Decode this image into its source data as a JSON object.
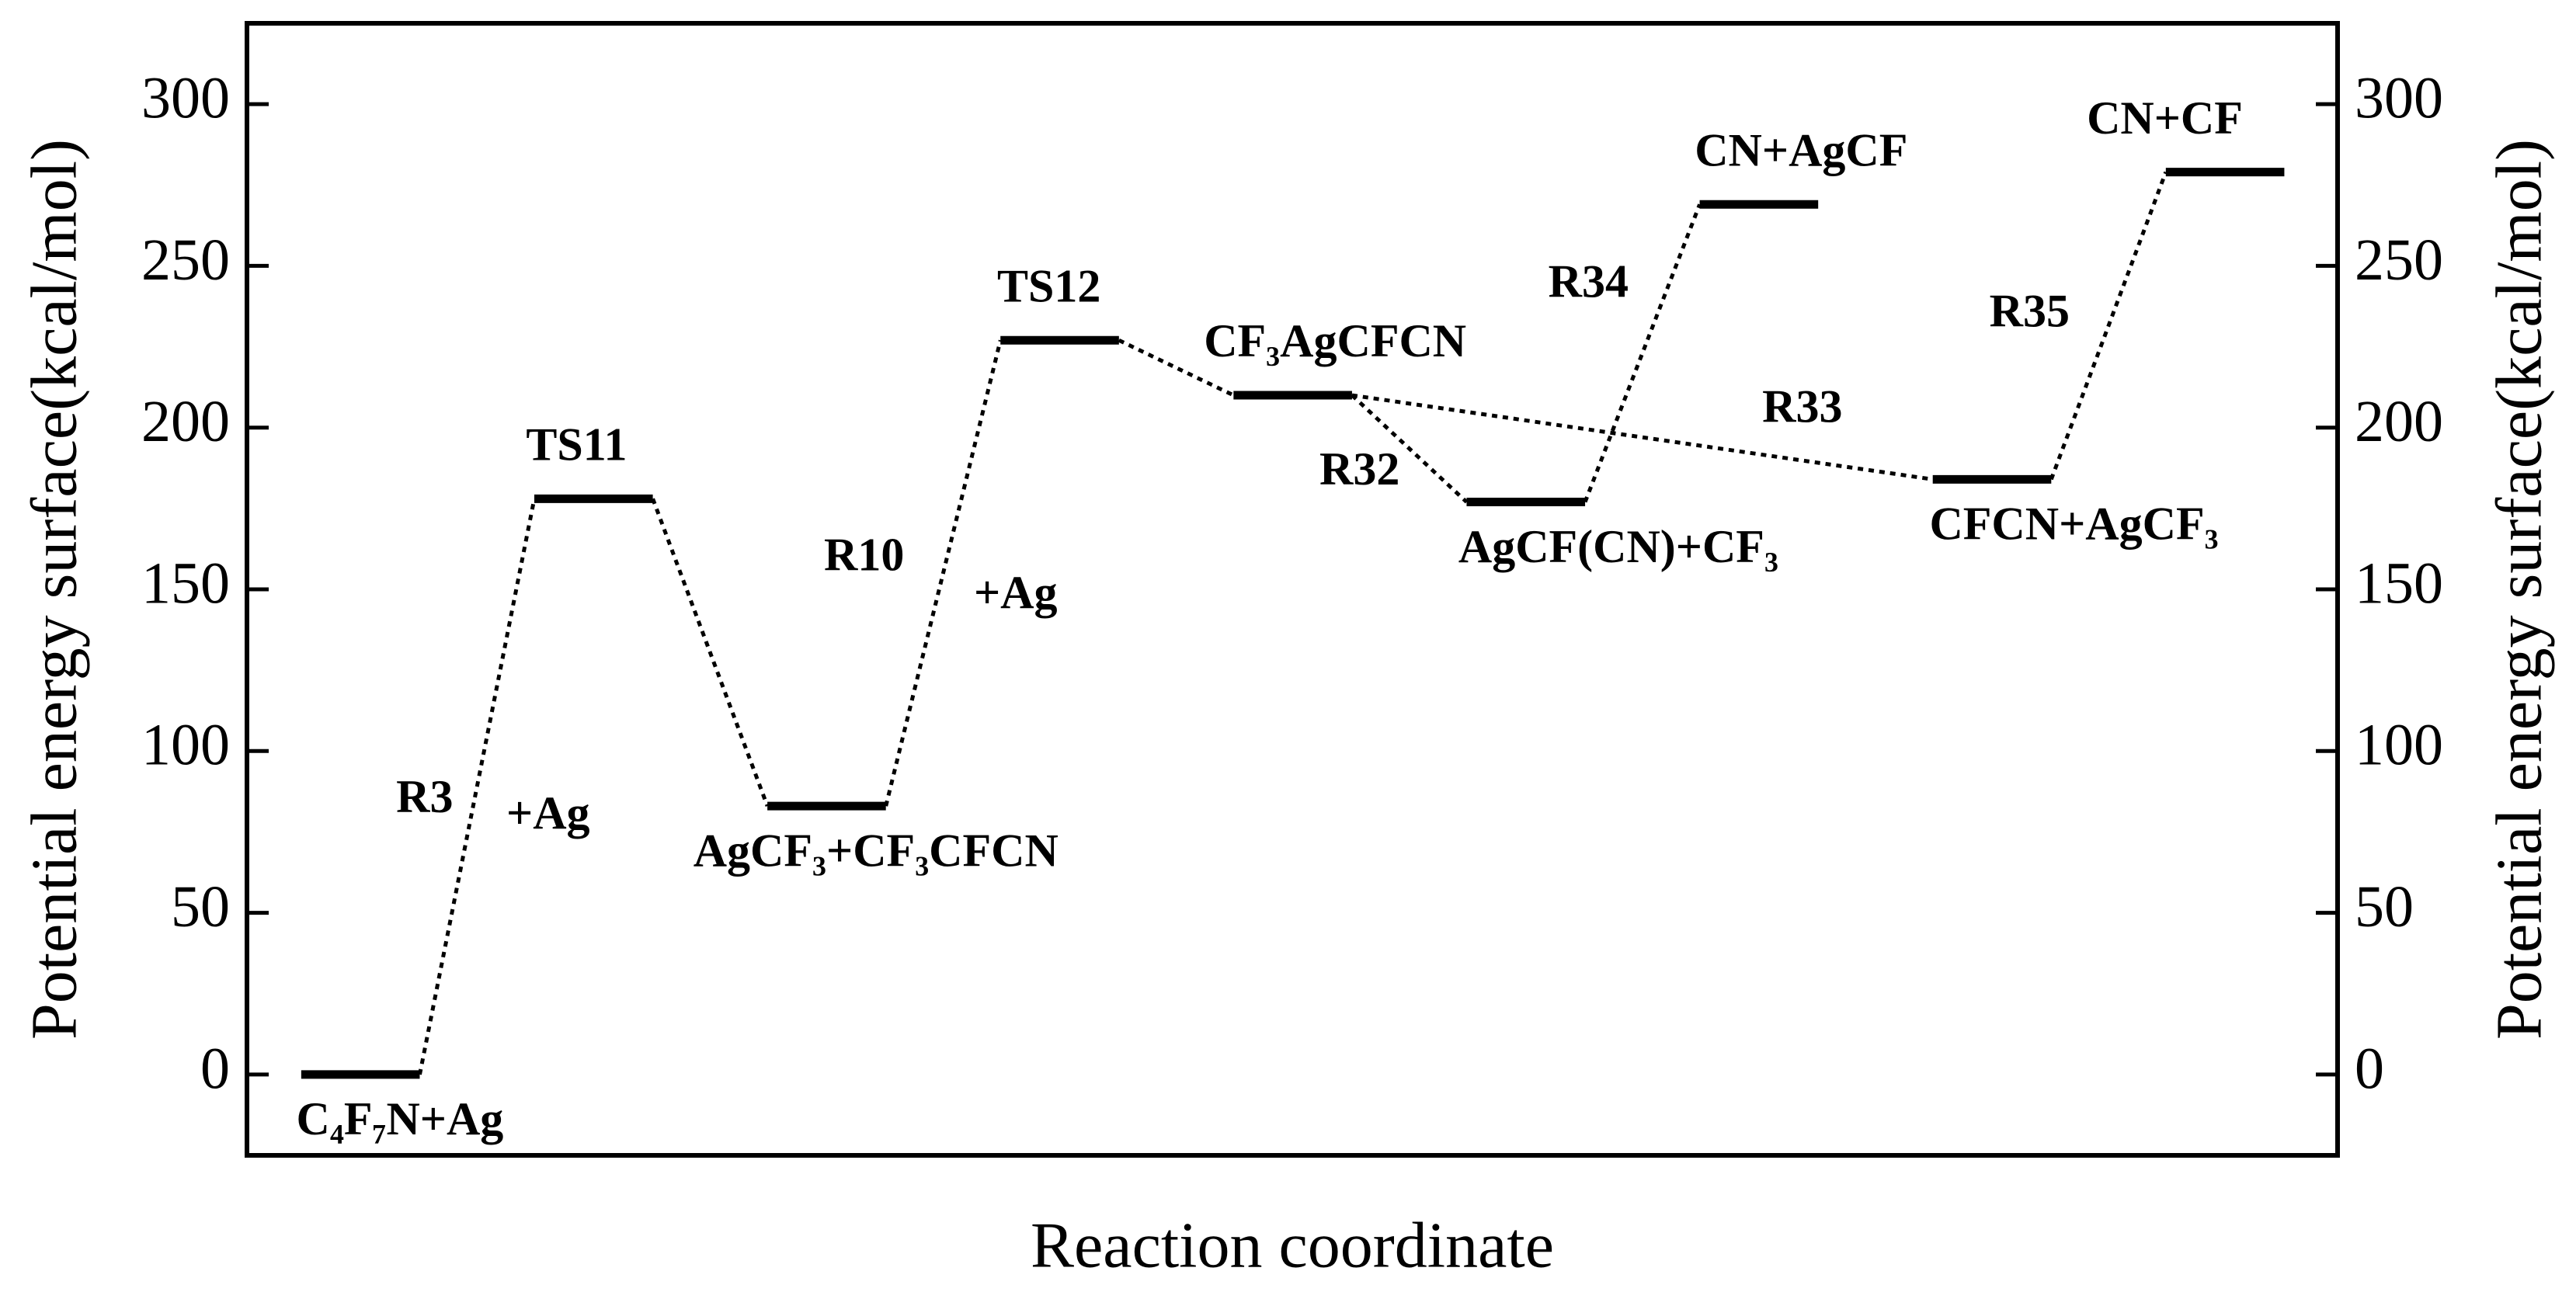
{
  "chart_data": {
    "type": "energy_profile",
    "x_label": "Reaction coordinate",
    "y_label": "Potential energy surface(kcal/mol)",
    "y2_label": "Potential energy surface(kcal/mol)",
    "ylim": [
      -25,
      325
    ],
    "yticks": [
      0,
      50,
      100,
      150,
      200,
      250,
      300
    ],
    "y2lim": [
      -25,
      325
    ],
    "y2ticks": [
      0,
      50,
      100,
      150,
      200,
      250,
      300
    ],
    "color": "#000000",
    "levels": [
      {
        "label": "C₄F₇N+Ag",
        "energy": 0,
        "label_position": "below"
      },
      {
        "label": "TS11",
        "energy": 178,
        "label_position": "above"
      },
      {
        "label": "AgCF₃+CF₃CFCN",
        "energy": 83,
        "label_position": "below"
      },
      {
        "label": "TS12",
        "energy": 227,
        "label_position": "above"
      },
      {
        "label": "CF₃AgCFCN",
        "energy": 210,
        "label_position": "above"
      },
      {
        "label": "AgCF(CN)+CF₃",
        "energy": 177,
        "label_position": "below"
      },
      {
        "label": "CN+AgCF",
        "energy": 269,
        "label_position": "above"
      },
      {
        "label": "CFCN+AgCF₃",
        "energy": 184,
        "label_position": "below"
      },
      {
        "label": "CN+CF",
        "energy": 279,
        "label_position": "above"
      }
    ],
    "connections": [
      {
        "from": 0,
        "to": 1,
        "labels": [
          "R3",
          "+Ag"
        ]
      },
      {
        "from": 1,
        "to": 2
      },
      {
        "from": 2,
        "to": 3,
        "labels": [
          "R10",
          "+Ag"
        ]
      },
      {
        "from": 3,
        "to": 4
      },
      {
        "from": 4,
        "to": 5,
        "labels": [
          "R32"
        ]
      },
      {
        "from": 4,
        "to": 7,
        "labels": [
          "R33"
        ]
      },
      {
        "from": 5,
        "to": 6,
        "labels": [
          "R34"
        ]
      },
      {
        "from": 7,
        "to": 8,
        "labels": [
          "R35"
        ]
      }
    ]
  }
}
